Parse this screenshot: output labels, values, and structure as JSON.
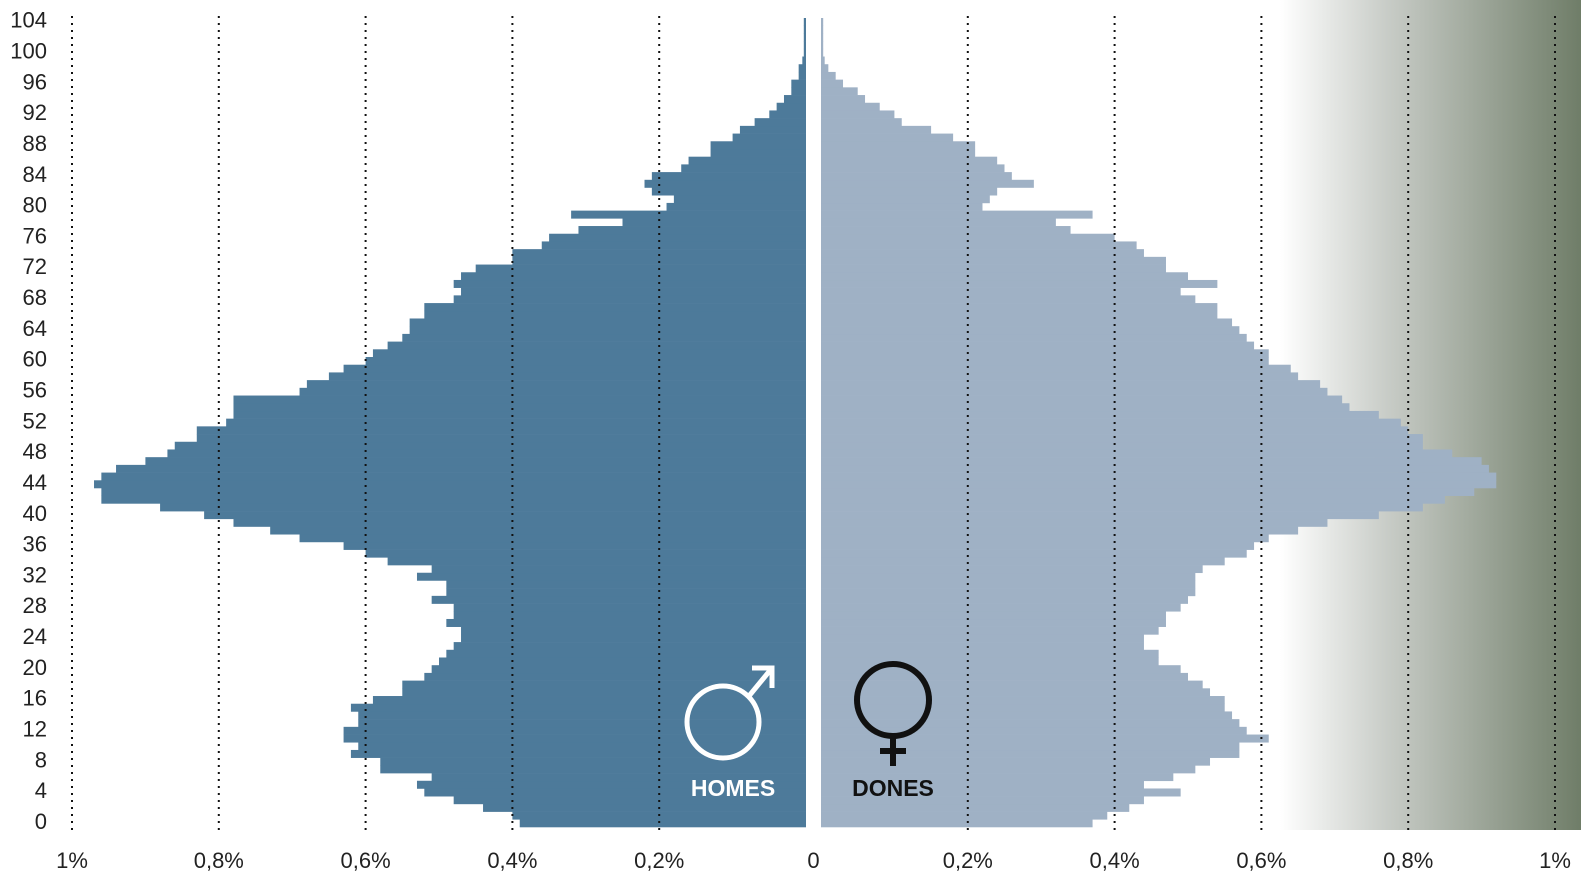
{
  "chart_data": {
    "type": "pyramid",
    "ylim": [
      -0.5,
      104.5
    ],
    "yticks": [
      0,
      4,
      8,
      12,
      16,
      20,
      24,
      28,
      32,
      36,
      40,
      44,
      48,
      52,
      56,
      60,
      64,
      68,
      72,
      76,
      80,
      84,
      88,
      92,
      96,
      100,
      104
    ],
    "xlim": [
      0,
      1
    ],
    "xticks": [
      {
        "value": 0,
        "label": "0"
      },
      {
        "value": 0.2,
        "label": "0,2%"
      },
      {
        "value": 0.4,
        "label": "0,4%"
      },
      {
        "value": 0.6,
        "label": "0,6%"
      },
      {
        "value": 0.8,
        "label": "0,8%"
      },
      {
        "value": 1,
        "label": "1%"
      }
    ],
    "grid": true,
    "series": [
      {
        "name": "HOMES",
        "color": "#4d7a9a",
        "side": "left",
        "values": [
          0.39,
          0.4,
          0.44,
          0.48,
          0.52,
          0.53,
          0.51,
          0.58,
          0.58,
          0.62,
          0.61,
          0.63,
          0.63,
          0.61,
          0.61,
          0.62,
          0.59,
          0.55,
          0.55,
          0.52,
          0.51,
          0.5,
          0.49,
          0.48,
          0.47,
          0.47,
          0.49,
          0.48,
          0.48,
          0.51,
          0.49,
          0.49,
          0.53,
          0.51,
          0.57,
          0.6,
          0.63,
          0.69,
          0.73,
          0.78,
          0.82,
          0.88,
          0.96,
          0.96,
          0.97,
          0.96,
          0.94,
          0.9,
          0.87,
          0.86,
          0.83,
          0.83,
          0.79,
          0.78,
          0.78,
          0.78,
          0.69,
          0.68,
          0.65,
          0.63,
          0.6,
          0.59,
          0.57,
          0.55,
          0.54,
          0.54,
          0.52,
          0.52,
          0.48,
          0.47,
          0.48,
          0.47,
          0.45,
          0.4,
          0.4,
          0.36,
          0.35,
          0.31,
          0.25,
          0.32,
          0.19,
          0.18,
          0.21,
          0.22,
          0.21,
          0.17,
          0.16,
          0.13,
          0.13,
          0.1,
          0.09,
          0.07,
          0.05,
          0.04,
          0.03,
          0.02,
          0.02,
          0.01,
          0.01,
          0.005,
          0.003,
          0.003,
          0.003,
          0.003,
          0.003
        ]
      },
      {
        "name": "DONES",
        "color": "#9fb1c5",
        "side": "right",
        "values": [
          0.37,
          0.39,
          0.42,
          0.44,
          0.49,
          0.44,
          0.48,
          0.51,
          0.53,
          0.57,
          0.57,
          0.61,
          0.58,
          0.57,
          0.56,
          0.55,
          0.55,
          0.53,
          0.52,
          0.5,
          0.49,
          0.46,
          0.46,
          0.44,
          0.44,
          0.46,
          0.47,
          0.47,
          0.49,
          0.5,
          0.51,
          0.51,
          0.51,
          0.52,
          0.55,
          0.58,
          0.59,
          0.61,
          0.65,
          0.69,
          0.76,
          0.82,
          0.85,
          0.89,
          0.92,
          0.92,
          0.91,
          0.9,
          0.86,
          0.82,
          0.82,
          0.8,
          0.79,
          0.76,
          0.72,
          0.71,
          0.69,
          0.68,
          0.65,
          0.64,
          0.61,
          0.61,
          0.59,
          0.58,
          0.57,
          0.56,
          0.54,
          0.54,
          0.51,
          0.49,
          0.54,
          0.5,
          0.47,
          0.47,
          0.44,
          0.43,
          0.4,
          0.34,
          0.32,
          0.37,
          0.22,
          0.23,
          0.24,
          0.29,
          0.26,
          0.25,
          0.24,
          0.21,
          0.21,
          0.18,
          0.15,
          0.11,
          0.1,
          0.08,
          0.06,
          0.05,
          0.03,
          0.02,
          0.01,
          0.005,
          0.003,
          0.003,
          0.003,
          0.003,
          0.003
        ]
      }
    ]
  }
}
